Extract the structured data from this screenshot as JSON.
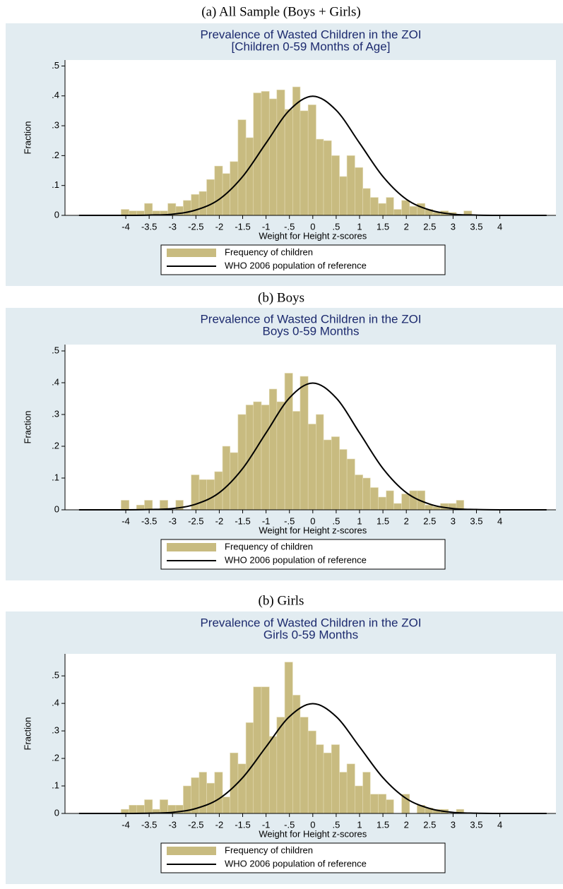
{
  "chart_data": [
    {
      "type": "histogram",
      "caption": "(a)   All Sample (Boys + Girls)",
      "title": "Prevalence of Wasted Children in the ZOI",
      "subtitle": "[Children 0-59 Months of Age]",
      "xlabel": "Weight for Height z-scores",
      "ylabel": "Fraction",
      "xlim": [
        -5.3,
        5.2
      ],
      "ylim": [
        0,
        0.52
      ],
      "xticks": [
        -4,
        -3.5,
        -3,
        -2.5,
        -2,
        -1.5,
        -1,
        {
          "value": -0.5,
          "label": "-.5"
        },
        0,
        {
          "value": 0.5,
          "label": ".5"
        },
        1,
        1.5,
        2,
        2.5,
        3,
        3.5,
        4
      ],
      "yticks": [
        0,
        {
          "value": 0.1,
          "label": ".1"
        },
        {
          "value": 0.2,
          "label": ".2"
        },
        {
          "value": 0.3,
          "label": ".3"
        },
        {
          "value": 0.4,
          "label": ".4"
        },
        {
          "value": 0.5,
          "label": ".5"
        }
      ],
      "legend": "bottom",
      "series": [
        {
          "name": "Frequency of children",
          "type": "histogram",
          "color": "#c8bb80",
          "bins": [
            -4.1,
            -3.93,
            -3.77,
            -3.6,
            -3.43,
            -3.27,
            -3.1,
            -2.93,
            -2.77,
            -2.6,
            -2.43,
            -2.27,
            -2.1,
            -1.93,
            -1.77,
            -1.6,
            -1.43,
            -1.27,
            -1.1,
            -0.93,
            -0.77,
            -0.6,
            -0.43,
            -0.27,
            -0.1,
            0.07,
            0.23,
            0.4,
            0.57,
            0.73,
            0.9,
            1.07,
            1.23,
            1.4,
            1.57,
            1.73,
            1.9,
            2.07,
            2.23,
            2.4,
            2.57,
            2.73,
            2.9,
            3.07,
            3.23,
            3.4
          ],
          "values": [
            0.02,
            0.015,
            0.015,
            0.04,
            0.015,
            0.015,
            0.04,
            0.03,
            0.05,
            0.07,
            0.08,
            0.12,
            0.165,
            0.14,
            0.18,
            0.32,
            0.26,
            0.41,
            0.415,
            0.39,
            0.42,
            0.355,
            0.43,
            0.35,
            0.37,
            0.255,
            0.25,
            0.2,
            0.13,
            0.2,
            0.16,
            0.09,
            0.06,
            0.04,
            0.06,
            0.02,
            0.05,
            0.03,
            0.04,
            0.02,
            0.01,
            0.015,
            0.01,
            0,
            0.015
          ]
        },
        {
          "name": "WHO 2006 population of reference",
          "type": "line",
          "color": "#000000",
          "x": [
            -5,
            -4.5,
            -4,
            -3.5,
            -3,
            -2.5,
            -2,
            -1.5,
            -1,
            -0.5,
            0,
            0.5,
            1,
            1.5,
            2,
            2.5,
            3,
            3.5,
            4,
            4.5,
            5
          ],
          "values": [
            0,
            0,
            0,
            0.001,
            0.004,
            0.018,
            0.054,
            0.13,
            0.242,
            0.352,
            0.399,
            0.352,
            0.242,
            0.13,
            0.054,
            0.018,
            0.004,
            0.001,
            0,
            0,
            0
          ]
        }
      ]
    },
    {
      "type": "histogram",
      "caption": "(b) Boys",
      "title": "Prevalence of Wasted Children in the ZOI",
      "subtitle": "Boys 0-59 Months",
      "xlabel": "Weight for Height z-scores",
      "ylabel": "Fraction",
      "xlim": [
        -5.3,
        5.2
      ],
      "ylim": [
        0,
        0.52
      ],
      "xticks": [
        -4,
        -3.5,
        -3,
        -2.5,
        -2,
        -1.5,
        -1,
        {
          "value": -0.5,
          "label": "-.5"
        },
        0,
        {
          "value": 0.5,
          "label": ".5"
        },
        1,
        1.5,
        2,
        2.5,
        3,
        3.5,
        4
      ],
      "yticks": [
        0,
        {
          "value": 0.1,
          "label": ".1"
        },
        {
          "value": 0.2,
          "label": ".2"
        },
        {
          "value": 0.3,
          "label": ".3"
        },
        {
          "value": 0.4,
          "label": ".4"
        },
        {
          "value": 0.5,
          "label": ".5"
        }
      ],
      "legend": "bottom",
      "series": [
        {
          "name": "Frequency of children",
          "type": "histogram",
          "color": "#c8bb80",
          "bins": [
            -4.1,
            -3.93,
            -3.77,
            -3.6,
            -3.43,
            -3.27,
            -3.1,
            -2.93,
            -2.77,
            -2.6,
            -2.43,
            -2.27,
            -2.1,
            -1.93,
            -1.77,
            -1.6,
            -1.43,
            -1.27,
            -1.1,
            -0.93,
            -0.77,
            -0.6,
            -0.43,
            -0.27,
            -0.1,
            0.07,
            0.23,
            0.4,
            0.57,
            0.73,
            0.9,
            1.07,
            1.23,
            1.4,
            1.57,
            1.73,
            1.9,
            2.07,
            2.23,
            2.4,
            2.57,
            2.73,
            2.9,
            3.07,
            3.23,
            3.4
          ],
          "values": [
            0.03,
            0,
            0.015,
            0.03,
            0,
            0.03,
            0,
            0.03,
            0,
            0.11,
            0.095,
            0.095,
            0.12,
            0.2,
            0.18,
            0.3,
            0.33,
            0.34,
            0.33,
            0.38,
            0.34,
            0.43,
            0.31,
            0.42,
            0.27,
            0.3,
            0.22,
            0.23,
            0.19,
            0.16,
            0.11,
            0.1,
            0.07,
            0.04,
            0.06,
            0.02,
            0.05,
            0.06,
            0.06,
            0.015,
            0.01,
            0.02,
            0.02,
            0.03,
            0
          ]
        },
        {
          "name": "WHO 2006 population of reference",
          "type": "line",
          "color": "#000000",
          "x": [
            -5,
            -4.5,
            -4,
            -3.5,
            -3,
            -2.5,
            -2,
            -1.5,
            -1,
            -0.5,
            0,
            0.5,
            1,
            1.5,
            2,
            2.5,
            3,
            3.5,
            4,
            4.5,
            5
          ],
          "values": [
            0,
            0,
            0,
            0.001,
            0.004,
            0.018,
            0.054,
            0.13,
            0.242,
            0.352,
            0.399,
            0.352,
            0.242,
            0.13,
            0.054,
            0.018,
            0.004,
            0.001,
            0,
            0,
            0
          ]
        }
      ]
    },
    {
      "type": "histogram",
      "caption": "(b)   Girls",
      "title": "Prevalence of Wasted Children in the ZOI",
      "subtitle": "Girls 0-59 Months",
      "xlabel": "Weight for Height z-scores",
      "ylabel": "Fraction",
      "xlim": [
        -5.3,
        5.2
      ],
      "ylim": [
        0,
        0.58
      ],
      "xticks": [
        -4,
        -3.5,
        -3,
        -2.5,
        -2,
        -1.5,
        -1,
        {
          "value": -0.5,
          "label": "-.5"
        },
        0,
        {
          "value": 0.5,
          "label": ".5"
        },
        1,
        1.5,
        2,
        2.5,
        3,
        3.5,
        4
      ],
      "yticks": [
        0,
        {
          "value": 0.1,
          "label": ".1"
        },
        {
          "value": 0.2,
          "label": ".2"
        },
        {
          "value": 0.3,
          "label": ".3"
        },
        {
          "value": 0.4,
          "label": ".4"
        },
        {
          "value": 0.5,
          "label": ".5"
        }
      ],
      "legend": "bottom",
      "series": [
        {
          "name": "Frequency of children",
          "type": "histogram",
          "color": "#c8bb80",
          "bins": [
            -4.1,
            -3.93,
            -3.77,
            -3.6,
            -3.43,
            -3.27,
            -3.1,
            -2.93,
            -2.77,
            -2.6,
            -2.43,
            -2.27,
            -2.1,
            -1.93,
            -1.77,
            -1.6,
            -1.43,
            -1.27,
            -1.1,
            -0.93,
            -0.77,
            -0.6,
            -0.43,
            -0.27,
            -0.1,
            0.07,
            0.23,
            0.4,
            0.57,
            0.73,
            0.9,
            1.07,
            1.23,
            1.4,
            1.57,
            1.73,
            1.9,
            2.07,
            2.23,
            2.4,
            2.57,
            2.73,
            2.9,
            3.07,
            3.23,
            3.4
          ],
          "values": [
            0.015,
            0.03,
            0.03,
            0.05,
            0.015,
            0.05,
            0.03,
            0.03,
            0.1,
            0.13,
            0.15,
            0.11,
            0.15,
            0.06,
            0.22,
            0.18,
            0.33,
            0.46,
            0.46,
            0.28,
            0.35,
            0.55,
            0.43,
            0.35,
            0.3,
            0.25,
            0.22,
            0.25,
            0.15,
            0.18,
            0.1,
            0.15,
            0.07,
            0.07,
            0.05,
            0,
            0.07,
            0,
            0.03,
            0.02,
            0.015,
            0.015,
            0,
            0.015,
            0
          ]
        },
        {
          "name": "WHO 2006 population of reference",
          "type": "line",
          "color": "#000000",
          "x": [
            -5,
            -4.5,
            -4,
            -3.5,
            -3,
            -2.5,
            -2,
            -1.5,
            -1,
            -0.5,
            0,
            0.5,
            1,
            1.5,
            2,
            2.5,
            3,
            3.5,
            4,
            4.5,
            5
          ],
          "values": [
            0,
            0,
            0,
            0.001,
            0.004,
            0.018,
            0.054,
            0.13,
            0.242,
            0.352,
            0.399,
            0.352,
            0.242,
            0.13,
            0.054,
            0.018,
            0.004,
            0.001,
            0,
            0,
            0
          ]
        }
      ]
    }
  ]
}
